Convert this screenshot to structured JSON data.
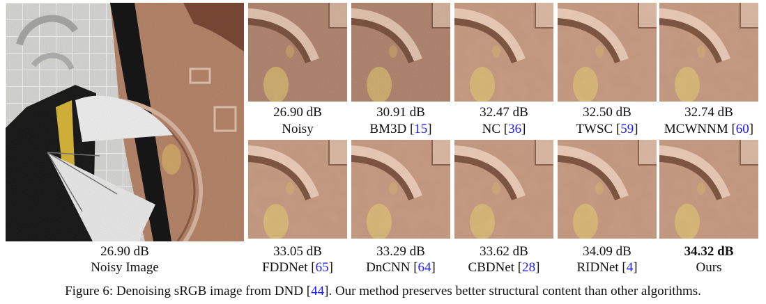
{
  "main_image": {
    "psnr": "26.90 dB",
    "label": "Noisy Image"
  },
  "thumbnails_top": [
    {
      "psnr": "26.90 dB",
      "method": "Noisy",
      "ref": "",
      "bold": false
    },
    {
      "psnr": "30.91 dB",
      "method": "BM3D",
      "ref": "15",
      "bold": false
    },
    {
      "psnr": "32.47 dB",
      "method": "NC",
      "ref": "36",
      "bold": false
    },
    {
      "psnr": "32.50 dB",
      "method": "TWSC",
      "ref": "59",
      "bold": false
    },
    {
      "psnr": "32.74 dB",
      "method": "MCWNNM",
      "ref": "60",
      "bold": false
    }
  ],
  "thumbnails_bottom": [
    {
      "psnr": "33.05 dB",
      "method": "FDDNet",
      "ref": "65",
      "bold": false
    },
    {
      "psnr": "33.29 dB",
      "method": "DnCNN",
      "ref": "64",
      "bold": false
    },
    {
      "psnr": "33.62 dB",
      "method": "CBDNet",
      "ref": "28",
      "bold": false
    },
    {
      "psnr": "34.09 dB",
      "method": "RIDNet",
      "ref": "4",
      "bold": false
    },
    {
      "psnr": "34.32 dB",
      "method": "Ours",
      "ref": "",
      "bold": true
    }
  ],
  "caption": {
    "prefix": "Figure 6: Denoising sRGB image from DND [",
    "ref": "44",
    "suffix": "]. Our method preserves better structural content than other algorithms."
  },
  "colors": {
    "reference_link": "#1a1aff",
    "copper": "#b98a6e",
    "smooth_copper": "#c49a82"
  }
}
